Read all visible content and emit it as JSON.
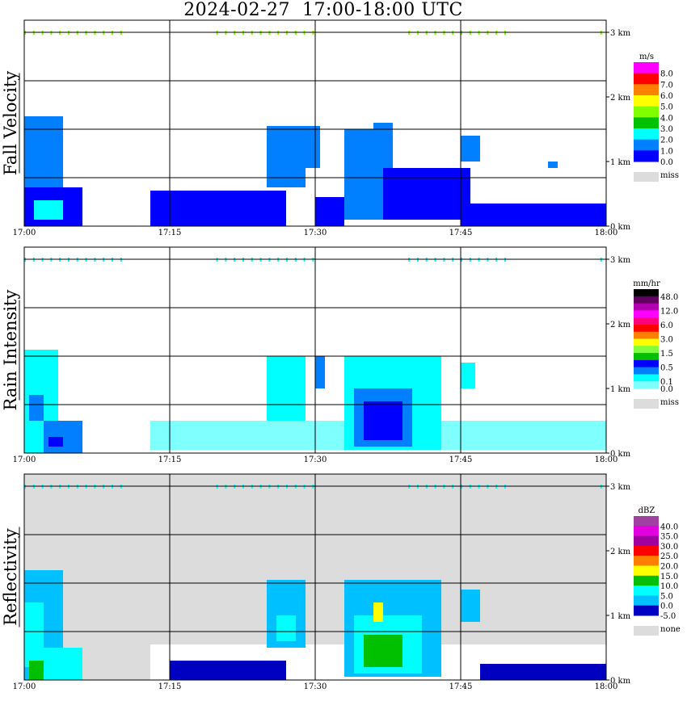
{
  "title": "2024-02-27  17:00-18:00 UTC",
  "chart_data": [
    {
      "type": "heatmap",
      "name": "fall-velocity",
      "ylabel": "Fall Velocity",
      "unit": "m/s",
      "x_ticks": [
        "17:00",
        "17:15",
        "17:30",
        "17:45",
        "18:00"
      ],
      "y_ticks": [
        "3 km",
        "2 km",
        "1 km",
        "0 km"
      ],
      "xlim_minutes": [
        0,
        60
      ],
      "ylim_km": [
        0,
        3
      ],
      "background": "#ffffff",
      "legend": {
        "colors": [
          "#ff00ff",
          "#ff0000",
          "#ff8000",
          "#ffff00",
          "#80ff00",
          "#00c000",
          "#00ffff",
          "#0080ff",
          "#0000ff"
        ],
        "labels": [
          {
            "text": "8.0",
            "at": 1
          },
          {
            "text": "7.0",
            "at": 2
          },
          {
            "text": "6.0",
            "at": 3
          },
          {
            "text": "5.0",
            "at": 4
          },
          {
            "text": "4.0",
            "at": 5
          },
          {
            "text": "3.0",
            "at": 6
          },
          {
            "text": "2.0",
            "at": 7
          },
          {
            "text": "1.0",
            "at": 8
          },
          {
            "text": "0.0",
            "at": 9
          }
        ],
        "miss_label": "miss",
        "miss_color": "#dcdcdc"
      },
      "echoes": [
        {
          "t": [
            0,
            4
          ],
          "h": [
            0,
            1.7
          ],
          "c": "#0080ff"
        },
        {
          "t": [
            0,
            6
          ],
          "h": [
            0,
            0.6
          ],
          "c": "#0000ff"
        },
        {
          "t": [
            1,
            4
          ],
          "h": [
            0.1,
            0.4
          ],
          "c": "#00ffff"
        },
        {
          "t": [
            13,
            27
          ],
          "h": [
            0,
            0.55
          ],
          "c": "#0000ff"
        },
        {
          "t": [
            25,
            29
          ],
          "h": [
            0.6,
            1.55
          ],
          "c": "#0080ff"
        },
        {
          "t": [
            29,
            30.5
          ],
          "h": [
            0.9,
            1.55
          ],
          "c": "#0080ff"
        },
        {
          "t": [
            30,
            33
          ],
          "h": [
            0,
            0.45
          ],
          "c": "#0000ff"
        },
        {
          "t": [
            33,
            37
          ],
          "h": [
            0.1,
            1.5
          ],
          "c": "#0080ff"
        },
        {
          "t": [
            37,
            46
          ],
          "h": [
            0.1,
            0.9
          ],
          "c": "#0000ff"
        },
        {
          "t": [
            36,
            38
          ],
          "h": [
            0.9,
            1.6
          ],
          "c": "#0080ff"
        },
        {
          "t": [
            45,
            47
          ],
          "h": [
            1.0,
            1.4
          ],
          "c": "#0080ff"
        },
        {
          "t": [
            45,
            60
          ],
          "h": [
            0,
            0.35
          ],
          "c": "#0000ff"
        },
        {
          "t": [
            54,
            55
          ],
          "h": [
            0.9,
            1.0
          ],
          "c": "#0080ff"
        }
      ]
    },
    {
      "type": "heatmap",
      "name": "rain-intensity",
      "ylabel": "Rain Intensity",
      "unit": "mm/hr",
      "x_ticks": [
        "17:00",
        "17:15",
        "17:30",
        "17:45",
        "18:00"
      ],
      "y_ticks": [
        "3 km",
        "2 km",
        "1 km",
        "0 km"
      ],
      "xlim_minutes": [
        0,
        60
      ],
      "ylim_km": [
        0,
        3
      ],
      "background": "#ffffff",
      "legend": {
        "colors": [
          "#000000",
          "#600060",
          "#b000b0",
          "#ff00ff",
          "#ff0080",
          "#ff0000",
          "#ff8000",
          "#ffff00",
          "#80ff40",
          "#00c000",
          "#0000ff",
          "#0080ff",
          "#00ffff",
          "#80ffff"
        ],
        "labels": [
          {
            "text": "48.0",
            "at": 1
          },
          {
            "text": "12.0",
            "at": 3
          },
          {
            "text": "6.0",
            "at": 5
          },
          {
            "text": "3.0",
            "at": 7
          },
          {
            "text": "1.5",
            "at": 9
          },
          {
            "text": "0.5",
            "at": 11
          },
          {
            "text": "0.1",
            "at": 13
          },
          {
            "text": "0.0",
            "at": 14
          }
        ],
        "miss_label": "miss",
        "miss_color": "#dcdcdc"
      },
      "echoes": [
        {
          "t": [
            0,
            3.5
          ],
          "h": [
            0,
            1.6
          ],
          "c": "#00ffff"
        },
        {
          "t": [
            0.5,
            2
          ],
          "h": [
            0.5,
            0.9
          ],
          "c": "#0080ff"
        },
        {
          "t": [
            2,
            6
          ],
          "h": [
            0,
            0.5
          ],
          "c": "#0080ff"
        },
        {
          "t": [
            2.5,
            4
          ],
          "h": [
            0.1,
            0.25
          ],
          "c": "#0000ff"
        },
        {
          "t": [
            13,
            60
          ],
          "h": [
            0.05,
            0.5
          ],
          "c": "#80ffff"
        },
        {
          "t": [
            25,
            29
          ],
          "h": [
            0.5,
            1.5
          ],
          "c": "#00ffff"
        },
        {
          "t": [
            30,
            31
          ],
          "h": [
            1.0,
            1.5
          ],
          "c": "#0080ff"
        },
        {
          "t": [
            33,
            43
          ],
          "h": [
            0.05,
            1.5
          ],
          "c": "#00ffff"
        },
        {
          "t": [
            34,
            40
          ],
          "h": [
            0.1,
            1.0
          ],
          "c": "#0080ff"
        },
        {
          "t": [
            35,
            39
          ],
          "h": [
            0.2,
            0.8
          ],
          "c": "#0000ff"
        },
        {
          "t": [
            45,
            46.5
          ],
          "h": [
            1.0,
            1.4
          ],
          "c": "#00ffff"
        }
      ]
    },
    {
      "type": "heatmap",
      "name": "reflectivity",
      "ylabel": "Reflectivity",
      "unit": "dBZ",
      "x_ticks": [
        "17:00",
        "17:15",
        "17:30",
        "17:45",
        "18:00"
      ],
      "y_ticks": [
        "3 km",
        "2 km",
        "1 km",
        "0 km"
      ],
      "xlim_minutes": [
        0,
        60
      ],
      "ylim_km": [
        0,
        3
      ],
      "background": "#dcdcdc",
      "legend": {
        "colors": [
          "#a040a0",
          "#e000e0",
          "#a000a0",
          "#ff0000",
          "#ff8000",
          "#ffff00",
          "#00c000",
          "#00ffff",
          "#00c0ff",
          "#0000c0"
        ],
        "labels": [
          {
            "text": "40.0",
            "at": 1
          },
          {
            "text": "35.0",
            "at": 2
          },
          {
            "text": "30.0",
            "at": 3
          },
          {
            "text": "25.0",
            "at": 4
          },
          {
            "text": "20.0",
            "at": 5
          },
          {
            "text": "15.0",
            "at": 6
          },
          {
            "text": "10.0",
            "at": 7
          },
          {
            "text": "5.0",
            "at": 8
          },
          {
            "text": "0.0",
            "at": 9
          },
          {
            "text": "-5.0",
            "at": 10
          }
        ],
        "miss_label": "none",
        "miss_color": "#dcdcdc"
      },
      "echoes": [
        {
          "t": [
            13,
            60
          ],
          "h": [
            0,
            0.55
          ],
          "c": "#ffffff"
        },
        {
          "t": [
            0,
            4
          ],
          "h": [
            0,
            1.7
          ],
          "c": "#00c0ff"
        },
        {
          "t": [
            0,
            2
          ],
          "h": [
            0.2,
            1.2
          ],
          "c": "#00ffff"
        },
        {
          "t": [
            0.5,
            2
          ],
          "h": [
            0,
            0.3
          ],
          "c": "#00c000"
        },
        {
          "t": [
            2,
            6
          ],
          "h": [
            0,
            0.5
          ],
          "c": "#00ffff"
        },
        {
          "t": [
            15,
            27
          ],
          "h": [
            0,
            0.3
          ],
          "c": "#0000c0"
        },
        {
          "t": [
            25,
            29
          ],
          "h": [
            0.5,
            1.55
          ],
          "c": "#00c0ff"
        },
        {
          "t": [
            26,
            28
          ],
          "h": [
            0.6,
            1.0
          ],
          "c": "#00ffff"
        },
        {
          "t": [
            33,
            43
          ],
          "h": [
            0.05,
            1.55
          ],
          "c": "#00c0ff"
        },
        {
          "t": [
            34,
            41
          ],
          "h": [
            0.1,
            1.0
          ],
          "c": "#00ffff"
        },
        {
          "t": [
            35,
            39
          ],
          "h": [
            0.2,
            0.7
          ],
          "c": "#00c000"
        },
        {
          "t": [
            36,
            37
          ],
          "h": [
            0.9,
            1.2
          ],
          "c": "#ffff00"
        },
        {
          "t": [
            45,
            47
          ],
          "h": [
            0.9,
            1.4
          ],
          "c": "#00c0ff"
        },
        {
          "t": [
            47,
            60
          ],
          "h": [
            0,
            0.25
          ],
          "c": "#0000c0"
        }
      ]
    }
  ]
}
